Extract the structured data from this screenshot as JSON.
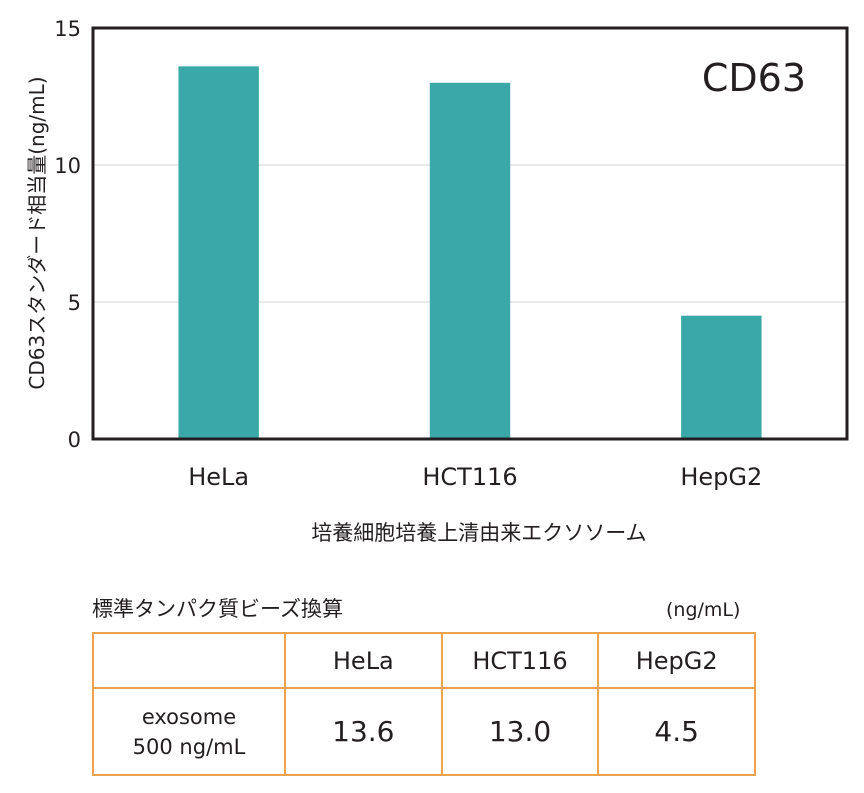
{
  "chart_data": {
    "type": "bar",
    "title": "CD63",
    "categories": [
      "HeLa",
      "HCT116",
      "HepG2"
    ],
    "values": [
      13.6,
      13.0,
      4.5
    ],
    "ylabel": "CD63スタンダード相当量(ng/mL)",
    "xlabel": "培養細胞培養上清由来エクソソーム",
    "ylim": [
      0,
      15
    ],
    "yticks": [
      0,
      5,
      10,
      15
    ],
    "grid": true,
    "bar_color": "#3aa8a8"
  },
  "table": {
    "caption": "標準タンパク質ビーズ換算",
    "unit": "(ng/mL)",
    "header": [
      "",
      "HeLa",
      "HCT116",
      "HepG2"
    ],
    "row_label_line1": "exosome",
    "row_label_line2": "500 ng/mL",
    "values": [
      "13.6",
      "13.0",
      "4.5"
    ],
    "border_color": "#f0a24d"
  }
}
